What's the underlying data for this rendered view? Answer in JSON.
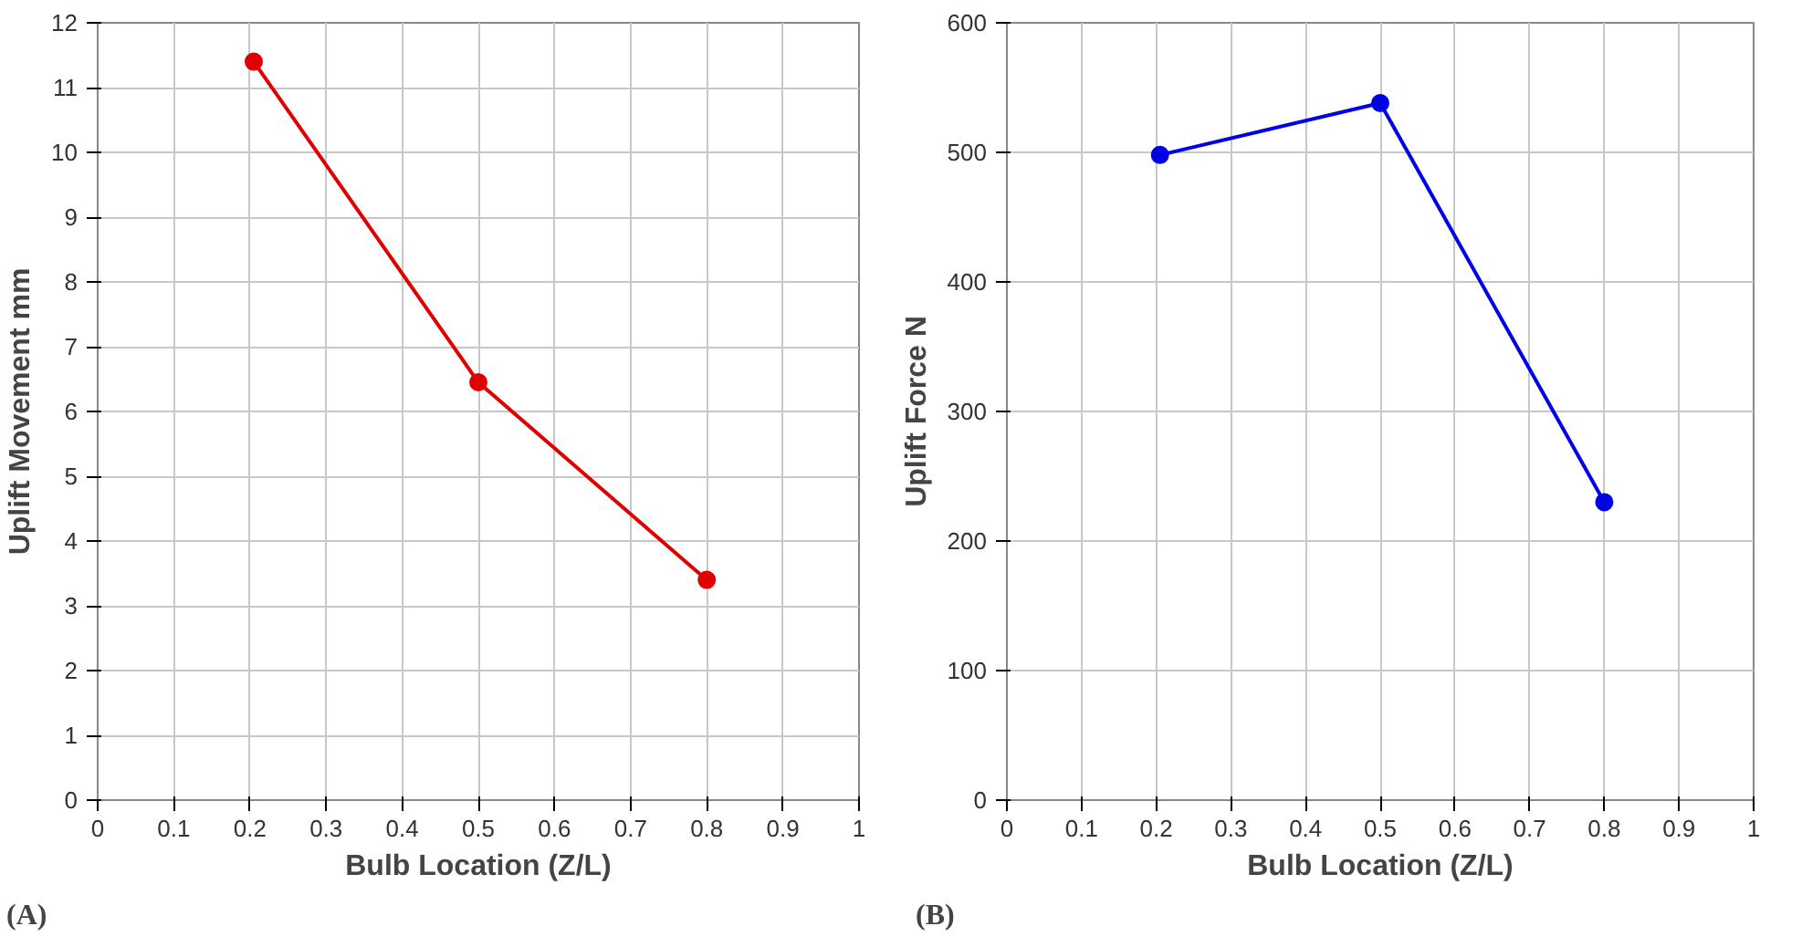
{
  "chart_data": [
    {
      "type": "line",
      "x": [
        0.205,
        0.5,
        0.8
      ],
      "series": [
        {
          "color": "#e00000",
          "values": [
            11.4,
            6.45,
            3.4
          ]
        }
      ],
      "xlabel": "Bulb Location (Z/L)",
      "ylabel": "Uplift Movement mm",
      "xlim": [
        0,
        1
      ],
      "xticks": [
        0,
        0.1,
        0.2,
        0.3,
        0.4,
        0.5,
        0.6,
        0.7,
        0.8,
        0.9,
        1
      ],
      "ylim": [
        0,
        12
      ],
      "yticks": [
        0,
        1,
        2,
        3,
        4,
        5,
        6,
        7,
        8,
        9,
        10,
        11,
        12
      ],
      "grid": true,
      "marker": "circle",
      "annotations": [
        "(A)"
      ]
    },
    {
      "type": "line",
      "x": [
        0.205,
        0.5,
        0.8
      ],
      "series": [
        {
          "color": "#0000e6",
          "values": [
            498,
            538,
            230
          ]
        }
      ],
      "xlabel": "Bulb Location (Z/L)",
      "ylabel": "Uplift Force N",
      "xlim": [
        0,
        1
      ],
      "xticks": [
        0,
        0.1,
        0.2,
        0.3,
        0.4,
        0.5,
        0.6,
        0.7,
        0.8,
        0.9,
        1
      ],
      "ylim": [
        0,
        600
      ],
      "yticks": [
        0,
        100,
        200,
        300,
        400,
        500,
        600
      ],
      "grid": true,
      "marker": "circle",
      "annotations": [
        "(B)"
      ]
    }
  ]
}
